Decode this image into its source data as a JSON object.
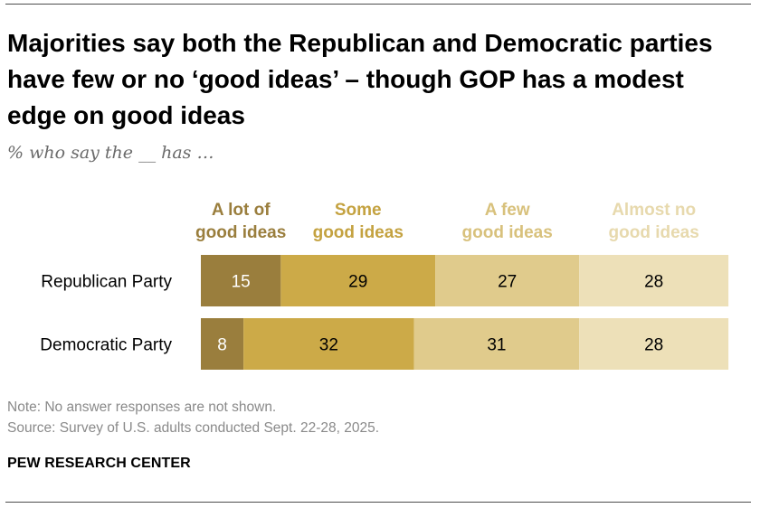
{
  "title": "Majorities say both the Republican and Democratic parties have few or no ‘good ideas’ – though GOP has a modest edge on good ideas",
  "subtitle": "% who say the __ has …",
  "note": "Note: No answer responses are not shown.",
  "source": "Source: Survey of U.S. adults conducted Sept. 22-28, 2025.",
  "brand": "PEW RESEARCH CENTER",
  "chart_data": {
    "type": "bar",
    "orientation": "horizontal",
    "stacked": true,
    "categories": [
      "Republican Party",
      "Democratic Party"
    ],
    "series": [
      {
        "name": "A lot of good ideas",
        "label_lines": [
          "A lot of",
          "good ideas"
        ],
        "values": [
          15,
          8
        ],
        "color": "#9a7e3d",
        "text_color": "#ffffff"
      },
      {
        "name": "Some good ideas",
        "label_lines": [
          "Some",
          "good ideas"
        ],
        "values": [
          29,
          32
        ],
        "color": "#ccaa48",
        "text_color": "#000000"
      },
      {
        "name": "A few good ideas",
        "label_lines": [
          "A few",
          "good ideas"
        ],
        "values": [
          27,
          31
        ],
        "color": "#e0cb8c",
        "text_color": "#000000"
      },
      {
        "name": "Almost no good ideas",
        "label_lines": [
          "Almost no",
          "good ideas"
        ],
        "values": [
          28,
          28
        ],
        "color": "#ede0b8",
        "text_color": "#000000"
      }
    ],
    "legend_label_colors": [
      "#9a7e3d",
      "#c4a240",
      "#d8c17c",
      "#e7d9ad"
    ],
    "xlim": [
      0,
      100
    ],
    "grid": false,
    "legend_position": "top"
  }
}
